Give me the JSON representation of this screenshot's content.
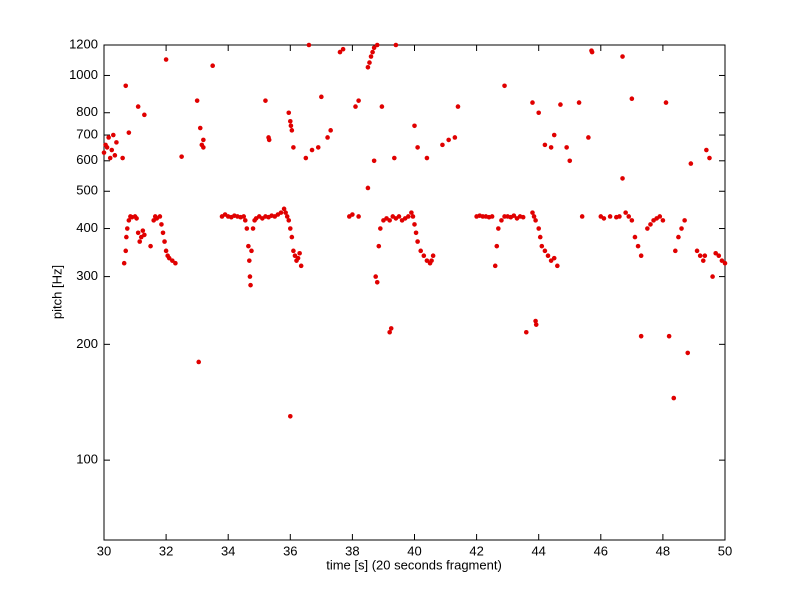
{
  "chart_data": {
    "type": "scatter",
    "xlabel": "time [s] (20 seconds fragment)",
    "ylabel": "pitch [Hz]",
    "color": "#e00000",
    "log_y": true,
    "xlim": [
      30,
      50
    ],
    "xticks": [
      30,
      32,
      34,
      36,
      38,
      40,
      42,
      44,
      46,
      48,
      50
    ],
    "ylim": [
      62,
      1200
    ],
    "yticks": [
      100,
      200,
      300,
      400,
      500,
      600,
      700,
      800,
      1000,
      1200
    ],
    "x": [
      30.0,
      30.05,
      30.1,
      30.15,
      30.2,
      30.25,
      30.3,
      30.35,
      30.4,
      30.6,
      30.7,
      30.8,
      30.65,
      30.7,
      30.72,
      30.75,
      30.8,
      30.85,
      30.9,
      31.0,
      31.05,
      31.1,
      31.15,
      31.2,
      31.25,
      31.3,
      31.1,
      31.3,
      31.5,
      31.6,
      31.65,
      31.7,
      31.8,
      31.85,
      31.9,
      31.95,
      32.0,
      32.05,
      32.1,
      32.2,
      32.3,
      32.0,
      32.5,
      33.0,
      33.05,
      33.1,
      33.15,
      33.2,
      33.2,
      33.5,
      33.8,
      33.9,
      34.0,
      34.1,
      34.2,
      34.3,
      34.4,
      34.5,
      34.55,
      34.6,
      34.65,
      34.68,
      34.7,
      34.72,
      34.75,
      34.8,
      34.85,
      34.9,
      35.0,
      35.2,
      35.3,
      35.32,
      35.1,
      35.2,
      35.3,
      35.4,
      35.5,
      35.6,
      35.7,
      35.8,
      35.85,
      35.9,
      35.95,
      36.0,
      36.05,
      36.1,
      36.15,
      36.2,
      36.25,
      36.3,
      36.35,
      36.0,
      35.95,
      36.0,
      36.02,
      36.05,
      36.1,
      36.5,
      36.6,
      36.7,
      36.9,
      37.0,
      37.2,
      37.3,
      37.6,
      37.7,
      37.9,
      38.0,
      38.2,
      38.1,
      38.2,
      38.5,
      38.5,
      38.55,
      38.6,
      38.65,
      38.7,
      38.8,
      38.7,
      38.75,
      38.8,
      38.85,
      38.9,
      38.95,
      39.0,
      39.1,
      39.2,
      39.3,
      39.4,
      39.5,
      39.6,
      39.7,
      39.8,
      39.2,
      39.25,
      39.35,
      39.4,
      39.9,
      39.95,
      40.0,
      40.05,
      40.1,
      40.2,
      40.3,
      40.4,
      40.5,
      40.55,
      40.6,
      40.0,
      40.1,
      40.4,
      40.9,
      41.1,
      41.3,
      41.4,
      42.0,
      42.1,
      42.2,
      42.3,
      42.4,
      42.5,
      42.6,
      42.65,
      42.7,
      42.8,
      42.9,
      42.9,
      43.0,
      43.1,
      43.2,
      43.3,
      43.4,
      43.5,
      43.6,
      43.8,
      43.8,
      43.85,
      43.9,
      44.0,
      44.05,
      44.1,
      44.2,
      44.3,
      44.4,
      44.5,
      44.6,
      43.9,
      43.92,
      44.0,
      44.2,
      44.4,
      44.5,
      44.7,
      44.9,
      45.0,
      45.3,
      45.4,
      45.6,
      45.7,
      45.72,
      46.0,
      46.1,
      46.3,
      46.5,
      46.6,
      46.7,
      46.7,
      46.8,
      46.9,
      47.0,
      47.1,
      47.2,
      47.3,
      47.0,
      47.3,
      47.5,
      47.6,
      47.7,
      47.8,
      47.9,
      48.0,
      48.1,
      48.2,
      48.35,
      48.4,
      48.5,
      48.6,
      48.7,
      48.8,
      48.9,
      49.1,
      49.2,
      49.3,
      49.35,
      49.4,
      49.5,
      49.6,
      49.7,
      49.8,
      49.9,
      50.0
    ],
    "values": [
      630,
      660,
      650,
      690,
      610,
      640,
      700,
      620,
      670,
      610,
      940,
      710,
      325,
      350,
      380,
      400,
      420,
      430,
      428,
      430,
      425,
      390,
      370,
      380,
      395,
      385,
      830,
      790,
      360,
      420,
      430,
      425,
      430,
      410,
      390,
      370,
      350,
      340,
      335,
      330,
      325,
      1100,
      615,
      860,
      180,
      730,
      660,
      650,
      680,
      1060,
      430,
      435,
      430,
      428,
      432,
      430,
      428,
      430,
      420,
      400,
      360,
      330,
      300,
      285,
      350,
      400,
      420,
      425,
      430,
      860,
      690,
      680,
      425,
      430,
      428,
      432,
      430,
      435,
      440,
      450,
      440,
      430,
      420,
      400,
      380,
      350,
      340,
      330,
      335,
      345,
      320,
      130,
      800,
      760,
      740,
      720,
      650,
      610,
      1200,
      640,
      650,
      880,
      690,
      720,
      1150,
      1170,
      430,
      435,
      430,
      830,
      860,
      510,
      1050,
      1080,
      1120,
      1150,
      1180,
      1200,
      600,
      300,
      290,
      360,
      400,
      830,
      420,
      425,
      420,
      430,
      425,
      430,
      420,
      425,
      430,
      215,
      220,
      610,
      1200,
      440,
      430,
      410,
      390,
      370,
      350,
      340,
      330,
      325,
      330,
      340,
      740,
      650,
      610,
      660,
      680,
      690,
      830,
      430,
      432,
      430,
      430,
      428,
      430,
      320,
      360,
      400,
      420,
      430,
      940,
      430,
      428,
      432,
      425,
      430,
      428,
      215,
      850,
      440,
      430,
      420,
      400,
      380,
      360,
      350,
      340,
      330,
      335,
      320,
      230,
      225,
      800,
      660,
      650,
      700,
      840,
      650,
      600,
      850,
      430,
      690,
      1160,
      1150,
      430,
      425,
      430,
      428,
      430,
      540,
      1120,
      440,
      430,
      420,
      380,
      360,
      340,
      870,
      210,
      400,
      410,
      420,
      425,
      430,
      420,
      850,
      210,
      145,
      350,
      380,
      400,
      420,
      190,
      590,
      350,
      340,
      330,
      340,
      640,
      610,
      300,
      345,
      340,
      330,
      325
    ]
  }
}
